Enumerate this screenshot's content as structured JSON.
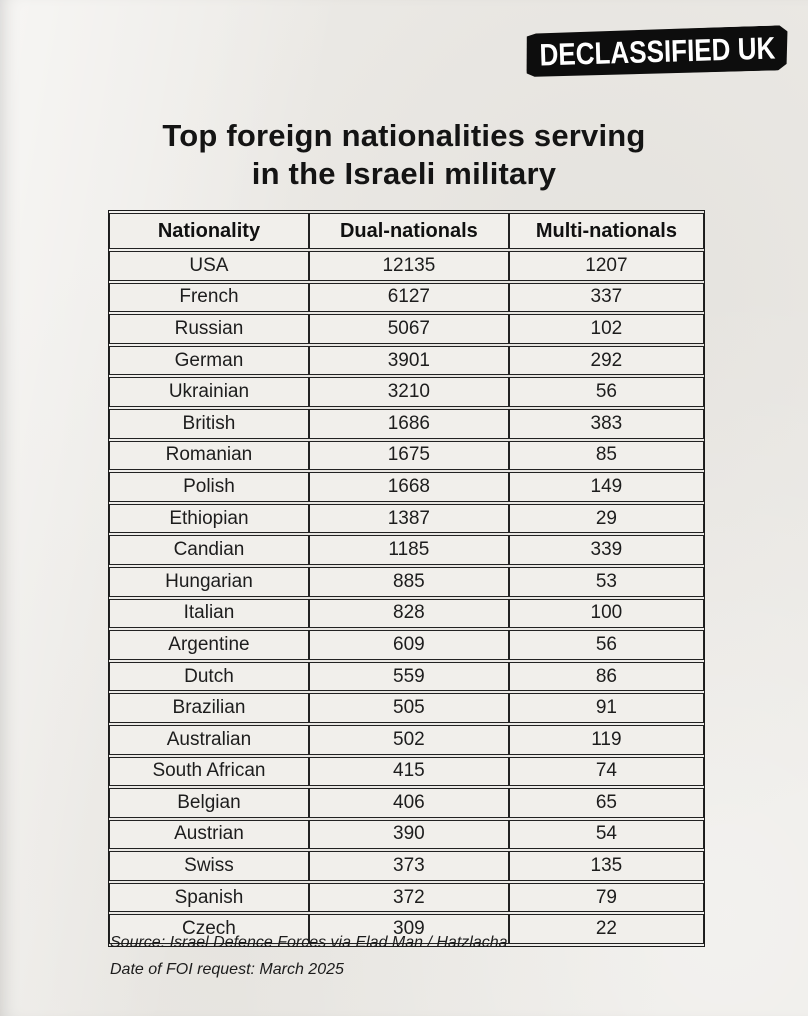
{
  "ui": {
    "logo": {
      "text": "DECLASSIFIED UK",
      "background_color": "#0d0d0d",
      "text_color": "#ffffff"
    },
    "title": {
      "lines": [
        "Top foreign nationalities serving",
        "in the Israeli military"
      ]
    },
    "footer": {
      "source_line": "Source: Israel Defence Forces via Elad Man / Hatzlacha",
      "date_line": "Date of FOI request: March 2025"
    }
  },
  "chart_data": {
    "type": "table",
    "title": "Top foreign nationalities serving in the Israeli military",
    "columns": [
      "Nationality",
      "Dual-nationals",
      "Multi-nationals"
    ],
    "rows": [
      [
        "USA",
        "12135",
        "1207"
      ],
      [
        "French",
        "6127",
        "337"
      ],
      [
        "Russian",
        "5067",
        "102"
      ],
      [
        "German",
        "3901",
        "292"
      ],
      [
        "Ukrainian",
        "3210",
        "56"
      ],
      [
        "British",
        "1686",
        "383"
      ],
      [
        "Romanian",
        "1675",
        "85"
      ],
      [
        "Polish",
        "1668",
        "149"
      ],
      [
        "Ethiopian",
        "1387",
        "29"
      ],
      [
        "Candian",
        "1185",
        "339"
      ],
      [
        "Hungarian",
        "885",
        "53"
      ],
      [
        "Italian",
        "828",
        "100"
      ],
      [
        "Argentine",
        "609",
        "56"
      ],
      [
        "Dutch",
        "559",
        "86"
      ],
      [
        "Brazilian",
        "505",
        "91"
      ],
      [
        "Australian",
        "502",
        "119"
      ],
      [
        "South African",
        "415",
        "74"
      ],
      [
        "Belgian",
        "406",
        "65"
      ],
      [
        "Austrian",
        "390",
        "54"
      ],
      [
        "Swiss",
        "373",
        "135"
      ],
      [
        "Spanish",
        "372",
        "79"
      ],
      [
        "Czech",
        "309",
        "22"
      ]
    ],
    "source": "Israel Defence Forces via Elad Man / Hatzlacha",
    "foi_request_date": "March 2025"
  }
}
